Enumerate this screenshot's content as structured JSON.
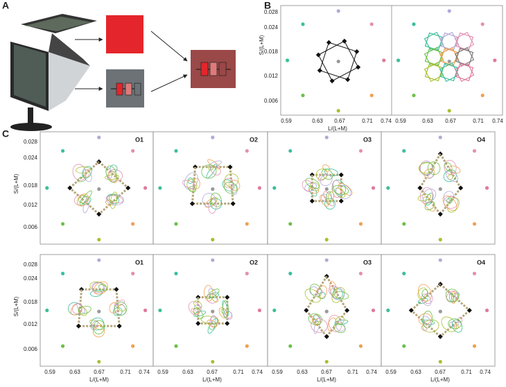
{
  "panel_labels": [
    "A",
    "B",
    "C"
  ],
  "panel_b": {
    "ylabel": "S/(L+M)",
    "xlabel": "L/(L+M)",
    "yticks": [
      "0.028",
      "0.024",
      "0.018",
      "0.012",
      "0.006"
    ],
    "xticks": [
      "0.59",
      "0.63",
      "0.67",
      "0.71",
      "0.74"
    ]
  },
  "panel_c": {
    "ylabel": "S/(L+M)",
    "xlabel": "L/(L+M)",
    "xticks": [
      "0.59",
      "0.63",
      "0.67",
      "0.71",
      "0.74"
    ],
    "rows": [
      {
        "yticks": [
          "0.028",
          "0.024",
          "0.018",
          "0.012",
          "0.006"
        ],
        "subplots": [
          "O1",
          "O2",
          "O3",
          "O4"
        ]
      },
      {
        "yticks": [
          "0.028",
          "0.024",
          "0.018",
          "0.012",
          "0.006"
        ],
        "subplots": [
          "O1",
          "O2",
          "O3",
          "O4"
        ]
      }
    ]
  }
}
